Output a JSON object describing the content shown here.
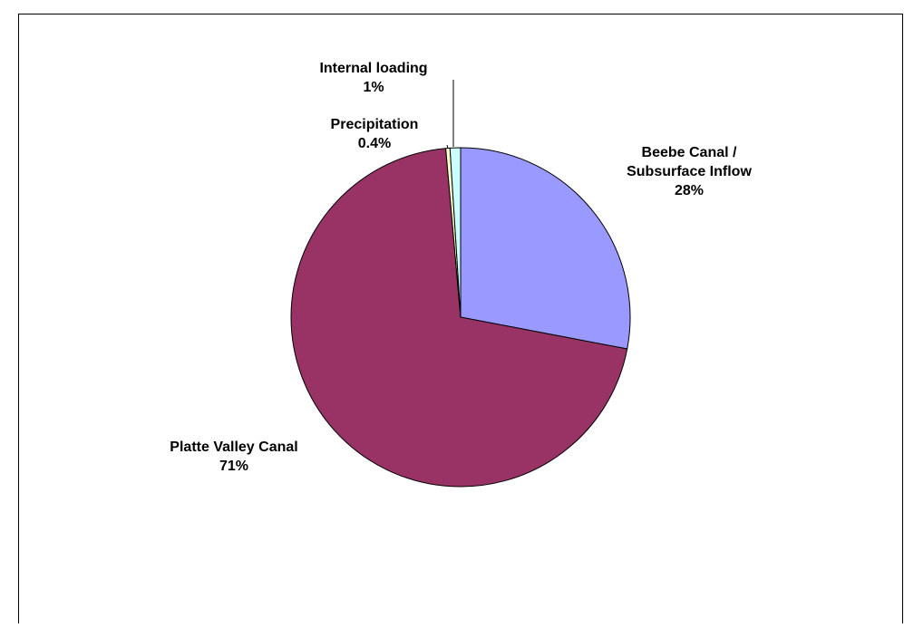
{
  "chart_data": {
    "type": "pie",
    "slices": [
      {
        "label_lines": [
          "Beebe Canal /",
          "Subsurface Inflow"
        ],
        "percent_label": "28%",
        "value": 28.0,
        "color": "#9999ff"
      },
      {
        "label_lines": [
          "Platte Valley Canal"
        ],
        "percent_label": "71%",
        "value": 70.6,
        "color": "#993366"
      },
      {
        "label_lines": [
          "Precipitation"
        ],
        "percent_label": "0.4%",
        "value": 0.4,
        "color": "#ffffcc"
      },
      {
        "label_lines": [
          "Internal loading"
        ],
        "percent_label": "1%",
        "value": 1.0,
        "color": "#ccffff"
      }
    ],
    "start_angle_deg": 0,
    "direction": "clockwise",
    "legend": "none"
  }
}
